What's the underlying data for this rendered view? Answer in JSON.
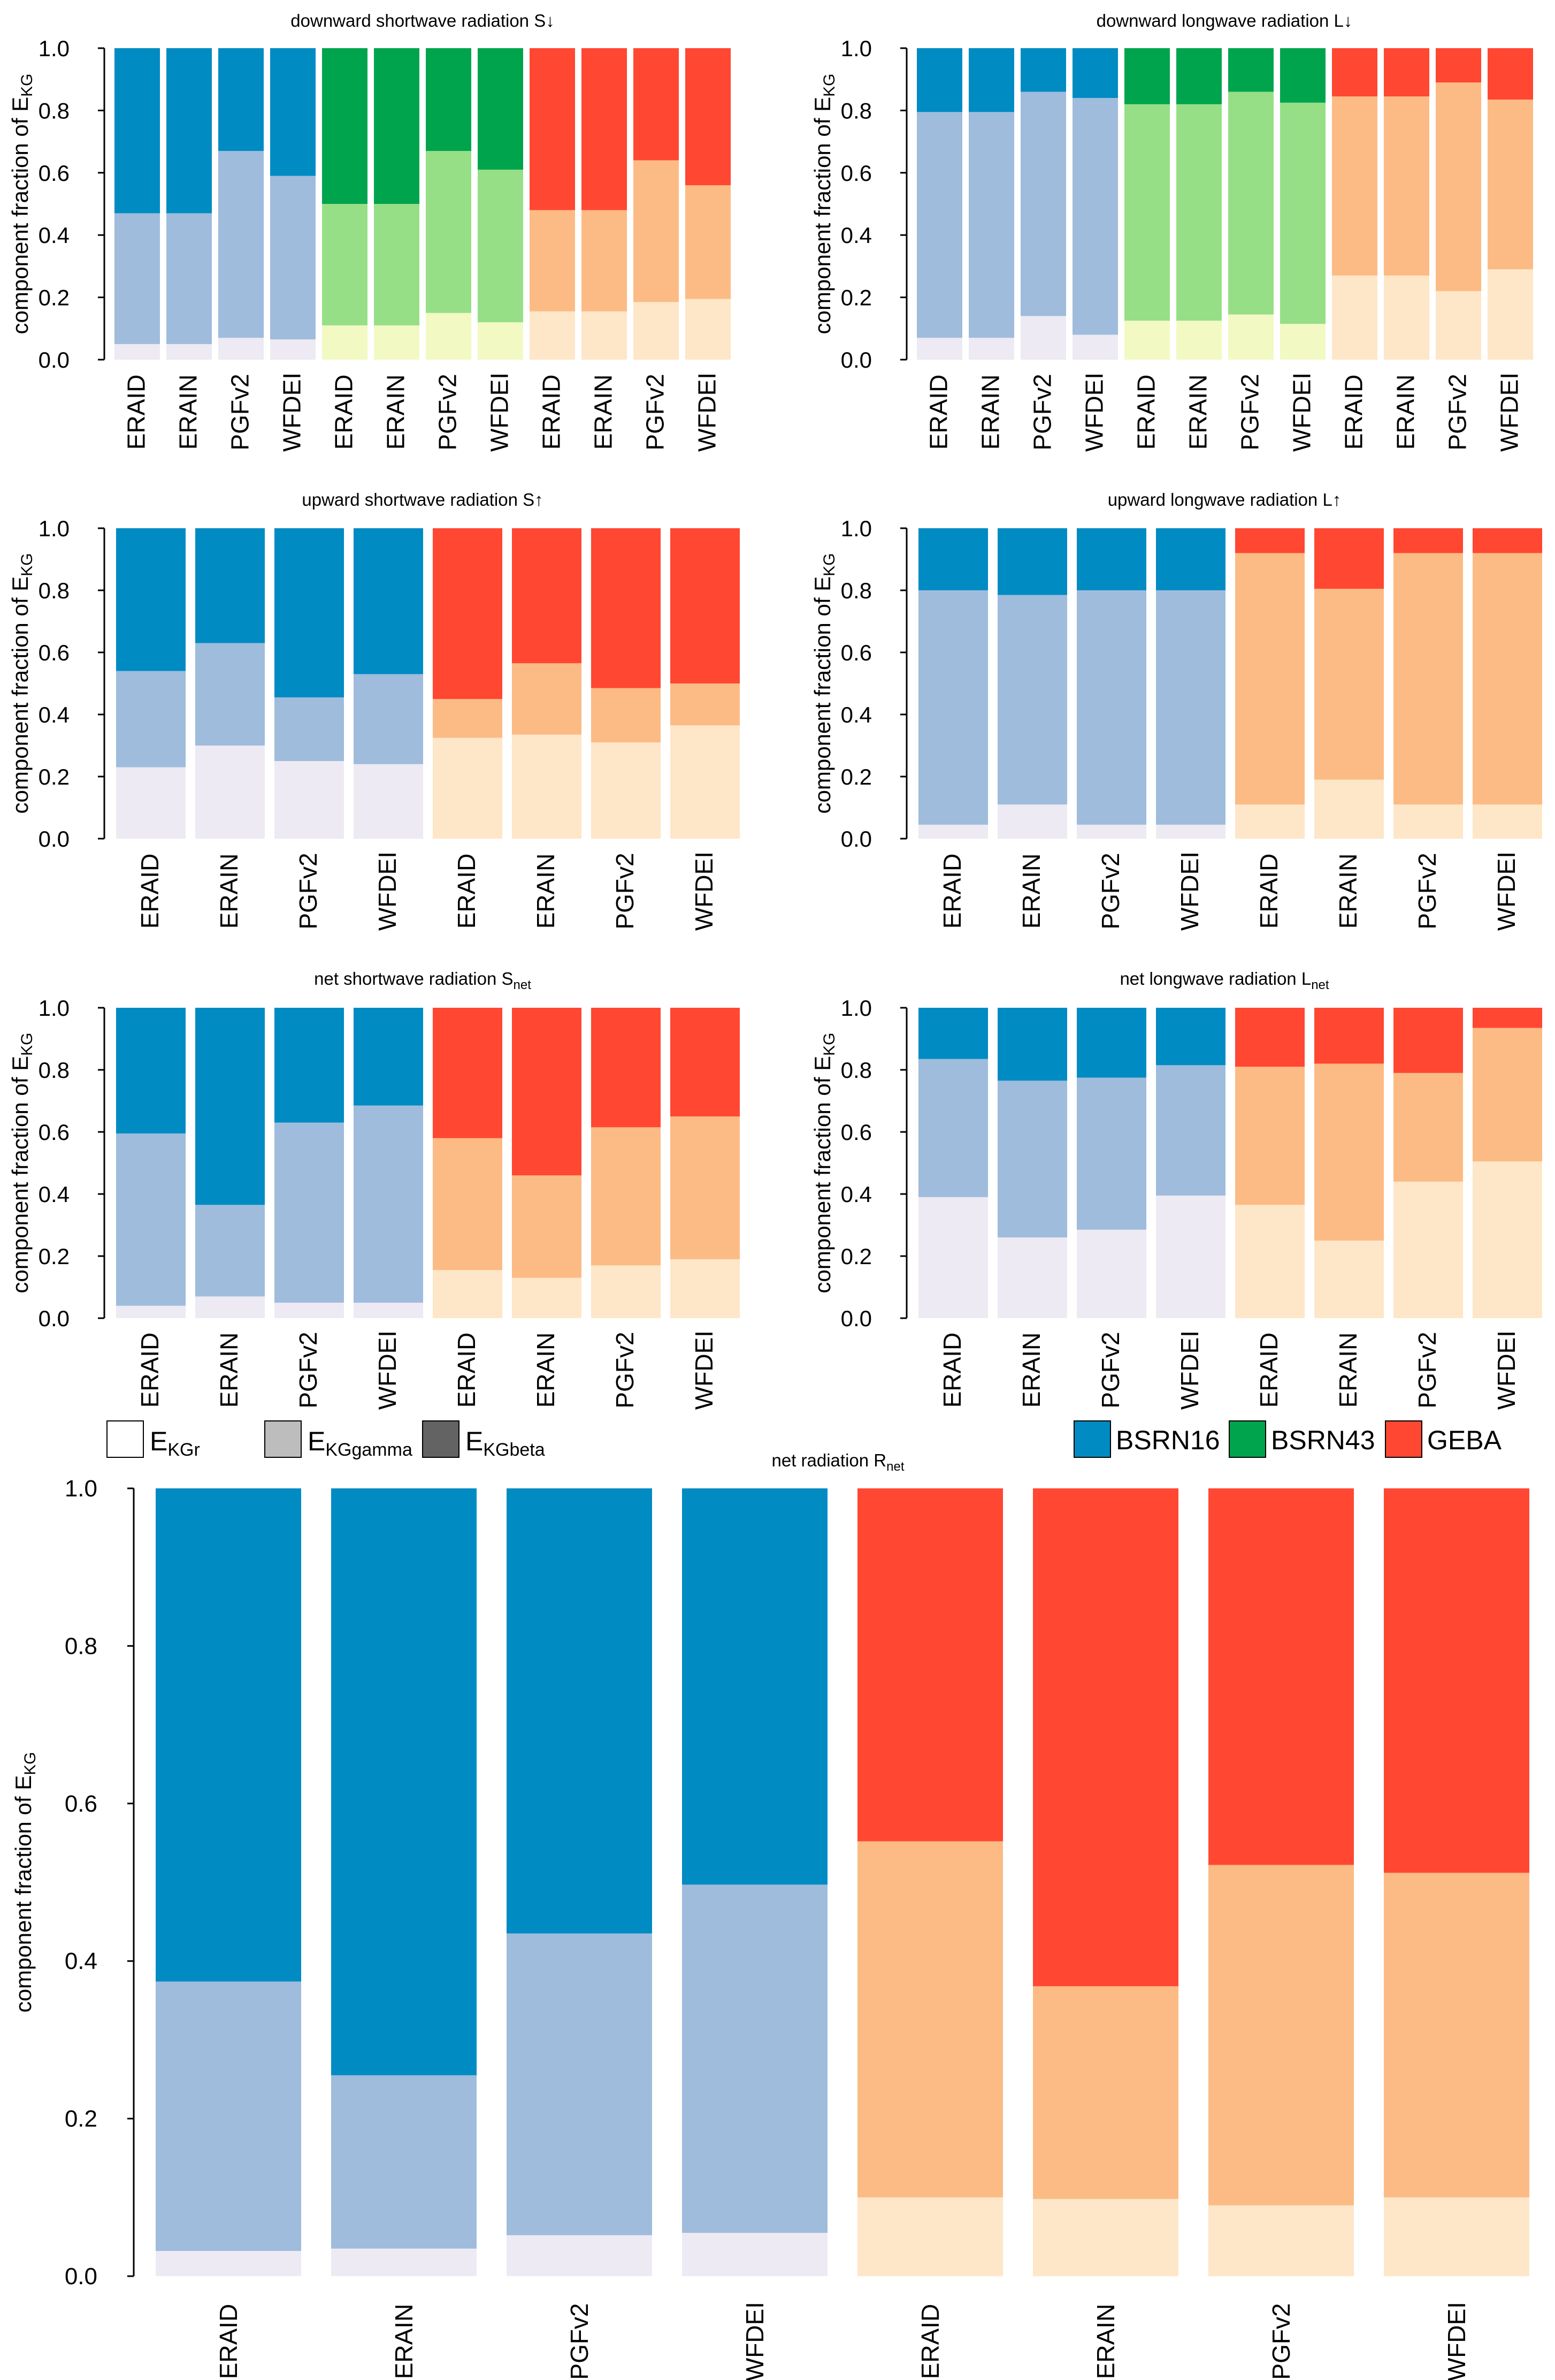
{
  "colors": {
    "BSRN16": [
      "#edeaf3",
      "#9fbcdc",
      "#008bc3"
    ],
    "BSRN43": [
      "#f2f9c3",
      "#96df87",
      "#00a44d"
    ],
    "GEBA": [
      "#fee6c8",
      "#fcbb84",
      "#ff4732"
    ]
  },
  "legend": {
    "components": [
      {
        "label": "E",
        "sub": "KGr",
        "swatch": "#ffffff"
      },
      {
        "label": "E",
        "sub": "KGgamma",
        "swatch": "#bdbdbd"
      },
      {
        "label": "E",
        "sub": "KGbeta",
        "swatch": "#636363"
      }
    ],
    "networks": [
      {
        "label": "BSRN16",
        "swatch": "#008bc3"
      },
      {
        "label": "BSRN43",
        "swatch": "#00a44d"
      },
      {
        "label": "GEBA",
        "swatch": "#ff4732"
      }
    ]
  },
  "chart_data": [
    {
      "type": "bar",
      "stacked": true,
      "title": {
        "main": "downward shortwave radiation S",
        "sub": "",
        "suffix": "↓"
      },
      "ylabel": {
        "main": "component fraction of E",
        "sub": "KG"
      },
      "ylim": [
        0,
        1
      ],
      "yticks": [
        "0.0",
        "0.2",
        "0.4",
        "0.6",
        "0.8",
        "1.0"
      ],
      "categories": [
        "ERAID",
        "ERAIN",
        "PGFv2",
        "WFDEI",
        "ERAID",
        "ERAIN",
        "PGFv2",
        "WFDEI",
        "ERAID",
        "ERAIN",
        "PGFv2",
        "WFDEI"
      ],
      "networks": [
        "BSRN16",
        "BSRN16",
        "BSRN16",
        "BSRN16",
        "BSRN43",
        "BSRN43",
        "BSRN43",
        "BSRN43",
        "GEBA",
        "GEBA",
        "GEBA",
        "GEBA"
      ],
      "series": [
        {
          "name": "EKGr",
          "values": [
            0.05,
            0.05,
            0.07,
            0.065,
            0.11,
            0.11,
            0.15,
            0.12,
            0.155,
            0.155,
            0.185,
            0.195
          ]
        },
        {
          "name": "EKGgamma",
          "values": [
            0.42,
            0.42,
            0.6,
            0.525,
            0.39,
            0.39,
            0.52,
            0.49,
            0.325,
            0.325,
            0.455,
            0.365
          ]
        },
        {
          "name": "EKGbeta",
          "values": [
            0.53,
            0.53,
            0.33,
            0.41,
            0.5,
            0.5,
            0.33,
            0.39,
            0.52,
            0.52,
            0.36,
            0.44
          ]
        }
      ]
    },
    {
      "type": "bar",
      "stacked": true,
      "title": {
        "main": "downward longwave radiation L",
        "sub": "",
        "suffix": "↓"
      },
      "ylabel": {
        "main": "component fraction of E",
        "sub": "KG"
      },
      "ylim": [
        0,
        1
      ],
      "yticks": [
        "0.0",
        "0.2",
        "0.4",
        "0.6",
        "0.8",
        "1.0"
      ],
      "categories": [
        "ERAID",
        "ERAIN",
        "PGFv2",
        "WFDEI",
        "ERAID",
        "ERAIN",
        "PGFv2",
        "WFDEI",
        "ERAID",
        "ERAIN",
        "PGFv2",
        "WFDEI"
      ],
      "networks": [
        "BSRN16",
        "BSRN16",
        "BSRN16",
        "BSRN16",
        "BSRN43",
        "BSRN43",
        "BSRN43",
        "BSRN43",
        "GEBA",
        "GEBA",
        "GEBA",
        "GEBA"
      ],
      "series": [
        {
          "name": "EKGr",
          "values": [
            0.07,
            0.07,
            0.14,
            0.08,
            0.125,
            0.125,
            0.145,
            0.115,
            0.27,
            0.27,
            0.22,
            0.29
          ]
        },
        {
          "name": "EKGgamma",
          "values": [
            0.725,
            0.725,
            0.72,
            0.76,
            0.695,
            0.695,
            0.715,
            0.71,
            0.575,
            0.575,
            0.67,
            0.545
          ]
        },
        {
          "name": "EKGbeta",
          "values": [
            0.205,
            0.205,
            0.14,
            0.16,
            0.18,
            0.18,
            0.14,
            0.175,
            0.155,
            0.155,
            0.11,
            0.165
          ]
        }
      ]
    },
    {
      "type": "bar",
      "stacked": true,
      "title": {
        "main": "upward shortwave radiation S",
        "sub": "",
        "suffix": "↑"
      },
      "ylabel": {
        "main": "component fraction of E",
        "sub": "KG"
      },
      "ylim": [
        0,
        1
      ],
      "yticks": [
        "0.0",
        "0.2",
        "0.4",
        "0.6",
        "0.8",
        "1.0"
      ],
      "categories": [
        "ERAID",
        "ERAIN",
        "PGFv2",
        "WFDEI",
        "ERAID",
        "ERAIN",
        "PGFv2",
        "WFDEI"
      ],
      "networks": [
        "BSRN16",
        "BSRN16",
        "BSRN16",
        "BSRN16",
        "GEBA",
        "GEBA",
        "GEBA",
        "GEBA"
      ],
      "series": [
        {
          "name": "EKGr",
          "values": [
            0.23,
            0.3,
            0.25,
            0.24,
            0.325,
            0.335,
            0.31,
            0.365
          ]
        },
        {
          "name": "EKGgamma",
          "values": [
            0.31,
            0.33,
            0.205,
            0.29,
            0.125,
            0.23,
            0.175,
            0.135
          ]
        },
        {
          "name": "EKGbeta",
          "values": [
            0.46,
            0.37,
            0.545,
            0.47,
            0.55,
            0.435,
            0.515,
            0.5
          ]
        }
      ]
    },
    {
      "type": "bar",
      "stacked": true,
      "title": {
        "main": "upward longwave radiation L",
        "sub": "",
        "suffix": "↑"
      },
      "ylabel": {
        "main": "component fraction of E",
        "sub": "KG"
      },
      "ylim": [
        0,
        1
      ],
      "yticks": [
        "0.0",
        "0.2",
        "0.4",
        "0.6",
        "0.8",
        "1.0"
      ],
      "categories": [
        "ERAID",
        "ERAIN",
        "PGFv2",
        "WFDEI",
        "ERAID",
        "ERAIN",
        "PGFv2",
        "WFDEI"
      ],
      "networks": [
        "BSRN16",
        "BSRN16",
        "BSRN16",
        "BSRN16",
        "GEBA",
        "GEBA",
        "GEBA",
        "GEBA"
      ],
      "series": [
        {
          "name": "EKGr",
          "values": [
            0.045,
            0.11,
            0.045,
            0.045,
            0.11,
            0.19,
            0.11,
            0.11
          ]
        },
        {
          "name": "EKGgamma",
          "values": [
            0.755,
            0.675,
            0.755,
            0.755,
            0.81,
            0.615,
            0.81,
            0.81
          ]
        },
        {
          "name": "EKGbeta",
          "values": [
            0.2,
            0.215,
            0.2,
            0.2,
            0.08,
            0.195,
            0.08,
            0.08
          ]
        }
      ]
    },
    {
      "type": "bar",
      "stacked": true,
      "title": {
        "main": "net shortwave radiation S",
        "sub": "net",
        "suffix": ""
      },
      "ylabel": {
        "main": "component fraction of E",
        "sub": "KG"
      },
      "ylim": [
        0,
        1
      ],
      "yticks": [
        "0.0",
        "0.2",
        "0.4",
        "0.6",
        "0.8",
        "1.0"
      ],
      "categories": [
        "ERAID",
        "ERAIN",
        "PGFv2",
        "WFDEI",
        "ERAID",
        "ERAIN",
        "PGFv2",
        "WFDEI"
      ],
      "networks": [
        "BSRN16",
        "BSRN16",
        "BSRN16",
        "BSRN16",
        "GEBA",
        "GEBA",
        "GEBA",
        "GEBA"
      ],
      "series": [
        {
          "name": "EKGr",
          "values": [
            0.04,
            0.07,
            0.05,
            0.05,
            0.155,
            0.13,
            0.17,
            0.19
          ]
        },
        {
          "name": "EKGgamma",
          "values": [
            0.555,
            0.295,
            0.58,
            0.635,
            0.425,
            0.33,
            0.445,
            0.46
          ]
        },
        {
          "name": "EKGbeta",
          "values": [
            0.405,
            0.635,
            0.37,
            0.315,
            0.42,
            0.54,
            0.385,
            0.35
          ]
        }
      ]
    },
    {
      "type": "bar",
      "stacked": true,
      "title": {
        "main": "net longwave radiation L",
        "sub": "net",
        "suffix": ""
      },
      "ylabel": {
        "main": "component fraction of E",
        "sub": "KG"
      },
      "ylim": [
        0,
        1
      ],
      "yticks": [
        "0.0",
        "0.2",
        "0.4",
        "0.6",
        "0.8",
        "1.0"
      ],
      "categories": [
        "ERAID",
        "ERAIN",
        "PGFv2",
        "WFDEI",
        "ERAID",
        "ERAIN",
        "PGFv2",
        "WFDEI"
      ],
      "networks": [
        "BSRN16",
        "BSRN16",
        "BSRN16",
        "BSRN16",
        "GEBA",
        "GEBA",
        "GEBA",
        "GEBA"
      ],
      "series": [
        {
          "name": "EKGr",
          "values": [
            0.39,
            0.26,
            0.285,
            0.395,
            0.365,
            0.25,
            0.44,
            0.505
          ]
        },
        {
          "name": "EKGgamma",
          "values": [
            0.445,
            0.505,
            0.49,
            0.42,
            0.445,
            0.57,
            0.35,
            0.43
          ]
        },
        {
          "name": "EKGbeta",
          "values": [
            0.165,
            0.235,
            0.225,
            0.185,
            0.19,
            0.18,
            0.21,
            0.065
          ]
        }
      ]
    },
    {
      "type": "bar",
      "stacked": true,
      "title": {
        "main": "net radiation R",
        "sub": "net",
        "suffix": ""
      },
      "ylabel": {
        "main": "component fraction of E",
        "sub": "KG"
      },
      "ylim": [
        0,
        1
      ],
      "yticks": [
        "0.0",
        "0.2",
        "0.4",
        "0.6",
        "0.8",
        "1.0"
      ],
      "categories": [
        "ERAID",
        "ERAIN",
        "PGFv2",
        "WFDEI",
        "ERAID",
        "ERAIN",
        "PGFv2",
        "WFDEI"
      ],
      "networks": [
        "BSRN16",
        "BSRN16",
        "BSRN16",
        "BSRN16",
        "GEBA",
        "GEBA",
        "GEBA",
        "GEBA"
      ],
      "series": [
        {
          "name": "EKGr",
          "values": [
            0.032,
            0.035,
            0.052,
            0.055,
            0.1,
            0.098,
            0.09,
            0.1
          ]
        },
        {
          "name": "EKGgamma",
          "values": [
            0.342,
            0.22,
            0.383,
            0.442,
            0.452,
            0.27,
            0.432,
            0.412
          ]
        },
        {
          "name": "EKGbeta",
          "values": [
            0.626,
            0.745,
            0.565,
            0.503,
            0.448,
            0.632,
            0.478,
            0.488
          ]
        }
      ]
    }
  ]
}
